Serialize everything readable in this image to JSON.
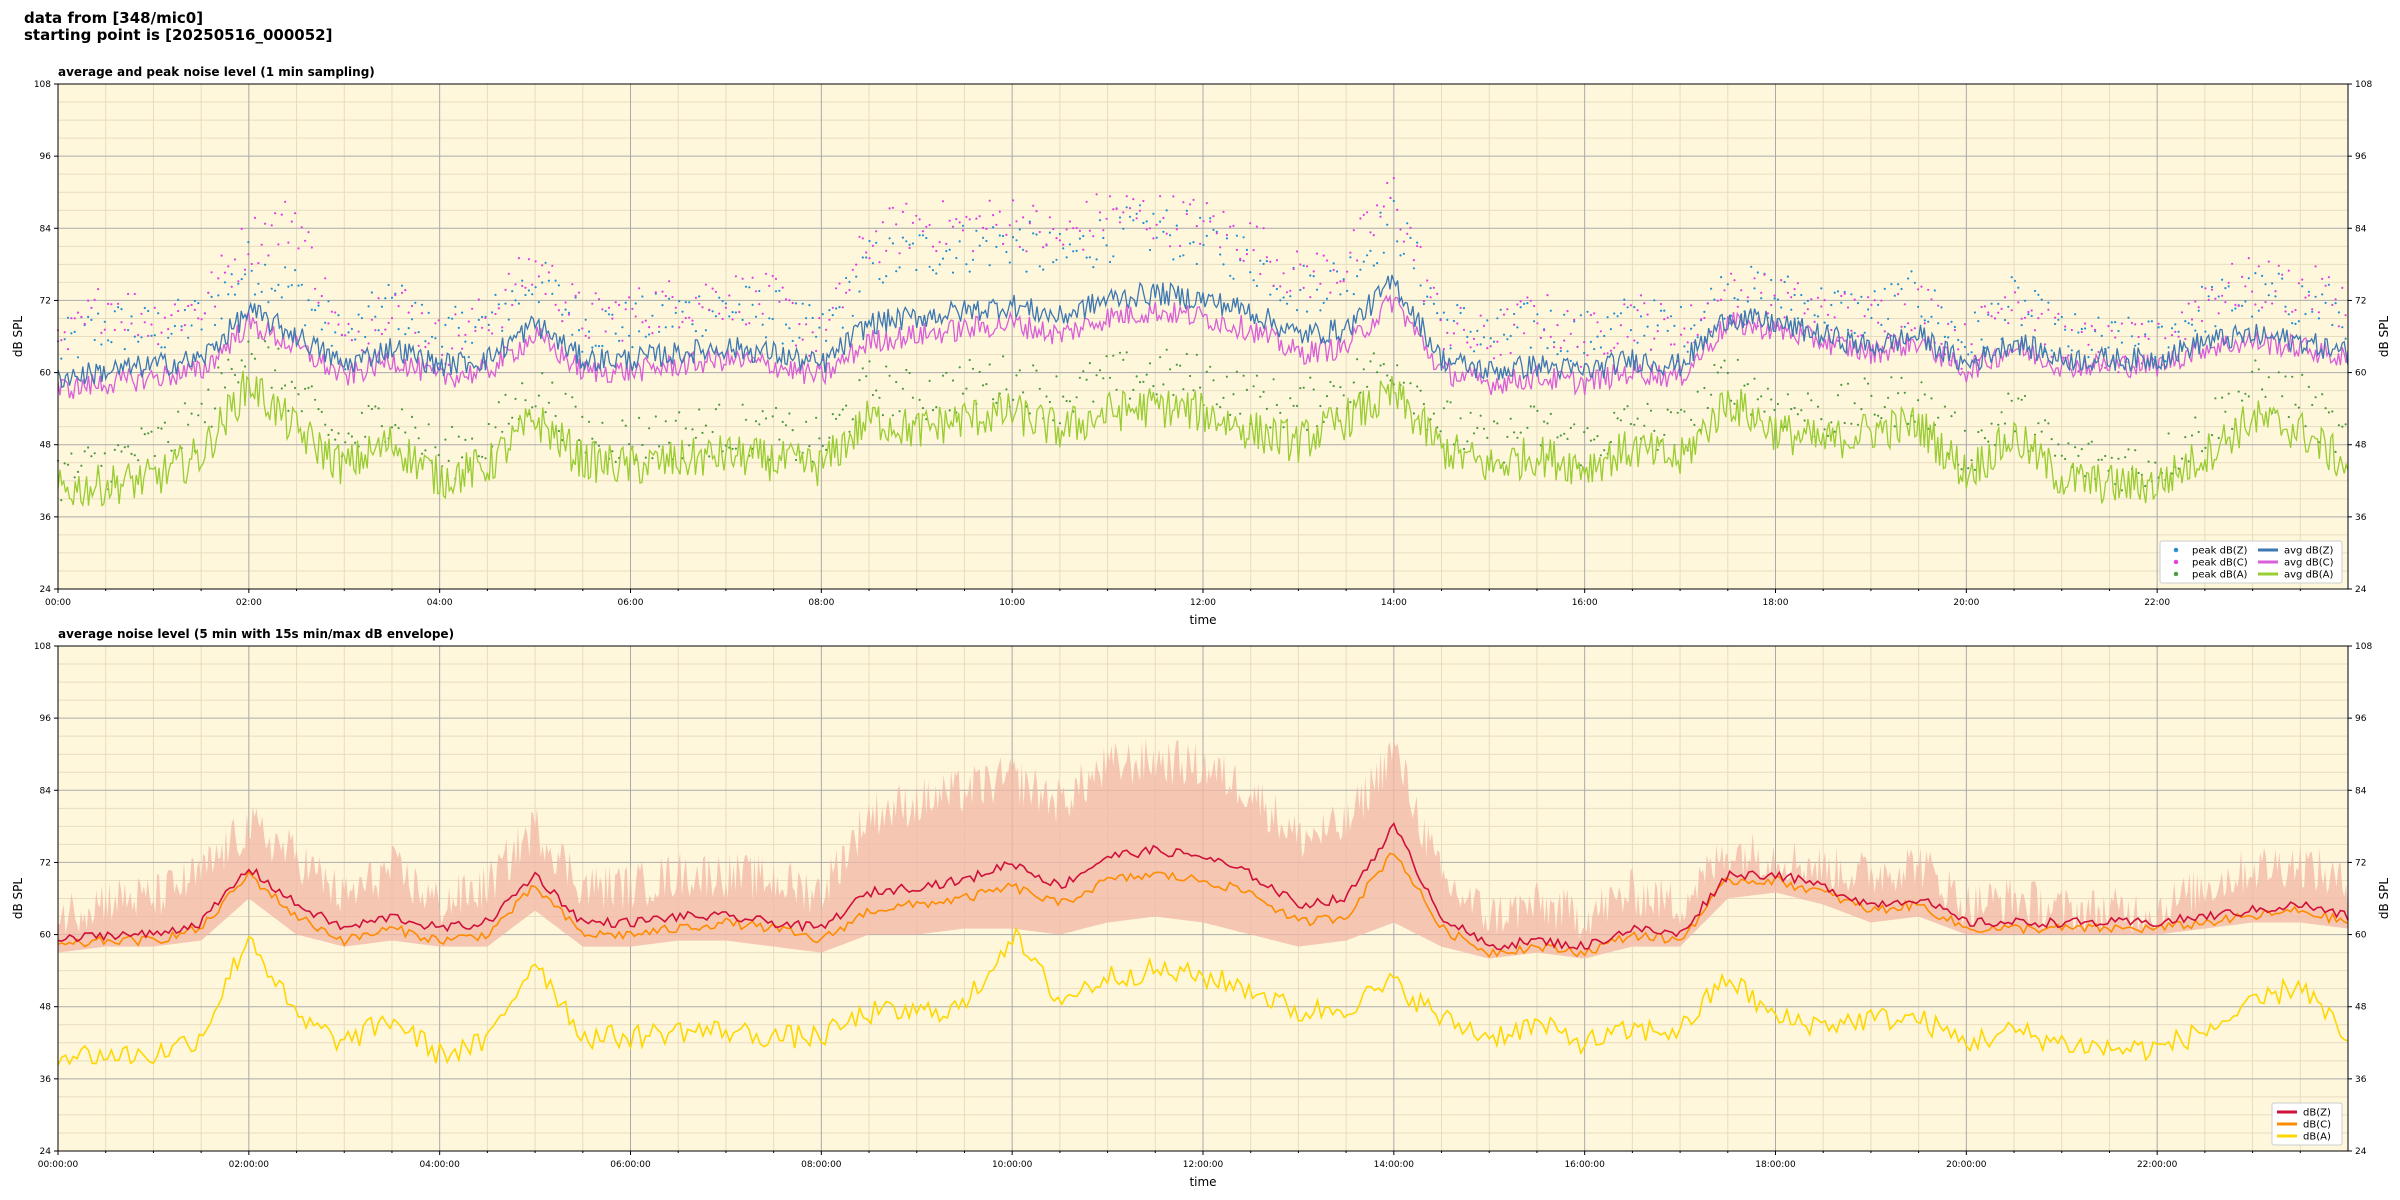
{
  "header": {
    "line1": "data from [348/mic0]",
    "line2": "starting point is [20250516_000052]"
  },
  "colors": {
    "plot_bg": "#fff7dc",
    "grid_major": "#aaaaaa",
    "grid_minor": "#e7dcc0",
    "peak_z": "#1f8fd4",
    "peak_c": "#e23ce2",
    "peak_a": "#4a9a3e",
    "avg_z": "#3e78b2",
    "avg_c": "#d95fd8",
    "avg_a": "#9acd32",
    "env_fill": "#f2b7a5",
    "line_z": "#d0103a",
    "line_c": "#ff8c00",
    "line_a": "#ffd700"
  },
  "chart_data": [
    {
      "type": "line",
      "title": "average and peak noise level (1 min sampling)",
      "xlabel": "time",
      "ylabel": "dB SPL",
      "ylim": [
        24,
        108
      ],
      "yticks": [
        "24",
        "36",
        "48",
        "60",
        "72",
        "84",
        "96",
        "108"
      ],
      "xticks": [
        "00:00",
        "02:00",
        "04:00",
        "06:00",
        "08:00",
        "10:00",
        "12:00",
        "14:00",
        "16:00",
        "18:00",
        "20:00",
        "22:00"
      ],
      "xlim_hours": [
        0,
        24
      ],
      "grid": true,
      "legend_position": "bottom-right",
      "legend": [
        "peak dB(Z)",
        "peak dB(C)",
        "peak dB(A)",
        "avg dB(Z)",
        "avg dB(C)",
        "avg dB(A)"
      ],
      "x_hours": [
        0,
        0.5,
        1,
        1.5,
        2,
        2.5,
        3,
        3.5,
        4,
        4.5,
        5,
        5.5,
        6,
        6.5,
        7,
        7.5,
        8,
        8.5,
        9,
        9.5,
        10,
        10.5,
        11,
        11.5,
        12,
        12.5,
        13,
        13.5,
        14,
        14.5,
        15,
        15.5,
        16,
        16.5,
        17,
        17.5,
        18,
        18.5,
        19,
        19.5,
        20,
        20.5,
        21,
        21.5,
        22,
        22.5,
        23,
        23.5,
        24
      ],
      "series": [
        {
          "name": "avg dB(Z)",
          "values": [
            59,
            60,
            61,
            62,
            70,
            66,
            61,
            64,
            61,
            62,
            68,
            62,
            62,
            63,
            64,
            63,
            61,
            68,
            69,
            70,
            71,
            69,
            72,
            73,
            72,
            70,
            66,
            67,
            75,
            62,
            60,
            61,
            60,
            62,
            61,
            69,
            68,
            66,
            64,
            66,
            61,
            65,
            62,
            62,
            62,
            65,
            66,
            65,
            63
          ]
        },
        {
          "name": "avg dB(C)",
          "values": [
            57,
            58,
            59,
            60,
            68,
            64,
            59,
            62,
            59,
            60,
            66,
            60,
            60,
            61,
            62,
            61,
            59,
            65,
            66,
            67,
            68,
            66,
            69,
            70,
            69,
            67,
            63,
            64,
            72,
            60,
            58,
            59,
            58,
            60,
            59,
            68,
            67,
            65,
            63,
            65,
            60,
            64,
            61,
            61,
            61,
            64,
            65,
            64,
            62
          ]
        },
        {
          "name": "avg dB(A)",
          "values": [
            40,
            41,
            42,
            46,
            58,
            50,
            44,
            48,
            42,
            44,
            52,
            45,
            44,
            45,
            46,
            45,
            44,
            52,
            50,
            52,
            53,
            50,
            53,
            54,
            53,
            50,
            48,
            52,
            56,
            47,
            44,
            46,
            44,
            47,
            45,
            55,
            50,
            48,
            50,
            51,
            43,
            49,
            42,
            41,
            41,
            46,
            52,
            50,
            44
          ]
        },
        {
          "name": "peak dB(Z)",
          "values": [
            62,
            66,
            65,
            67,
            76,
            72,
            63,
            70,
            64,
            66,
            74,
            66,
            66,
            68,
            69,
            68,
            64,
            76,
            78,
            79,
            80,
            77,
            81,
            82,
            80,
            77,
            72,
            74,
            84,
            67,
            64,
            66,
            64,
            67,
            65,
            72,
            71,
            69,
            68,
            71,
            63,
            70,
            64,
            63,
            63,
            69,
            71,
            70,
            68
          ]
        },
        {
          "name": "peak dB(C)",
          "values": [
            61,
            70,
            67,
            69,
            80,
            84,
            62,
            71,
            63,
            67,
            76,
            67,
            68,
            70,
            71,
            70,
            63,
            80,
            83,
            82,
            84,
            80,
            85,
            84,
            83,
            80,
            74,
            76,
            88,
            66,
            63,
            68,
            63,
            68,
            64,
            71,
            70,
            68,
            67,
            70,
            62,
            72,
            63,
            62,
            62,
            71,
            73,
            72,
            70
          ]
        },
        {
          "name": "peak dB(A)",
          "values": [
            41,
            43,
            46,
            50,
            64,
            54,
            46,
            52,
            44,
            47,
            56,
            48,
            47,
            48,
            49,
            48,
            46,
            56,
            54,
            56,
            57,
            54,
            57,
            58,
            57,
            54,
            52,
            56,
            60,
            50,
            46,
            49,
            46,
            50,
            48,
            58,
            53,
            51,
            53,
            54,
            45,
            52,
            44,
            43,
            43,
            49,
            56,
            54,
            46
          ]
        }
      ]
    },
    {
      "type": "line",
      "title": "average noise level (5 min with 15s min/max dB envelope)",
      "xlabel": "time",
      "ylabel": "dB SPL",
      "ylim": [
        24,
        108
      ],
      "yticks": [
        "24",
        "36",
        "48",
        "60",
        "72",
        "84",
        "96",
        "108"
      ],
      "xticks": [
        "00:00:00",
        "02:00:00",
        "04:00:00",
        "06:00:00",
        "08:00:00",
        "10:00:00",
        "12:00:00",
        "14:00:00",
        "16:00:00",
        "18:00:00",
        "20:00:00",
        "22:00:00"
      ],
      "xlim_hours": [
        0,
        24
      ],
      "grid": true,
      "legend_position": "bottom-right",
      "legend": [
        "dB(Z)",
        "dB(C)",
        "dB(A)"
      ],
      "x_hours": [
        0,
        0.5,
        1,
        1.5,
        2,
        2.5,
        3,
        3.5,
        4,
        4.5,
        5,
        5.5,
        6,
        6.5,
        7,
        7.5,
        8,
        8.5,
        9,
        9.5,
        10,
        10.5,
        11,
        11.5,
        12,
        12.5,
        13,
        13.5,
        14,
        14.5,
        15,
        15.5,
        16,
        16.5,
        17,
        17.5,
        18,
        18.5,
        19,
        19.5,
        20,
        20.5,
        21,
        21.5,
        22,
        22.5,
        23,
        23.5,
        24
      ],
      "series": [
        {
          "name": "dB(Z)",
          "values": [
            59,
            60,
            60,
            62,
            71,
            65,
            61,
            63,
            61,
            62,
            70,
            62,
            62,
            63,
            63,
            62,
            61,
            67,
            68,
            69,
            72,
            68,
            73,
            74,
            73,
            70,
            65,
            66,
            78,
            63,
            58,
            59,
            58,
            61,
            60,
            70,
            70,
            68,
            65,
            66,
            62,
            62,
            62,
            62,
            62,
            63,
            64,
            65,
            63
          ]
        },
        {
          "name": "dB(C)",
          "values": [
            58,
            59,
            59,
            61,
            70,
            63,
            59,
            61,
            59,
            60,
            68,
            60,
            60,
            61,
            62,
            61,
            59,
            64,
            65,
            66,
            68,
            65,
            69,
            70,
            69,
            67,
            62,
            63,
            74,
            61,
            57,
            58,
            57,
            60,
            59,
            69,
            69,
            67,
            64,
            65,
            61,
            61,
            61,
            61,
            61,
            62,
            63,
            64,
            62
          ]
        },
        {
          "name": "dB(A)",
          "values": [
            40,
            40,
            40,
            43,
            60,
            46,
            42,
            46,
            40,
            42,
            56,
            43,
            43,
            44,
            44,
            43,
            43,
            47,
            47,
            48,
            60,
            49,
            53,
            54,
            53,
            51,
            47,
            48,
            52,
            46,
            43,
            45,
            42,
            44,
            44,
            53,
            46,
            45,
            46,
            46,
            42,
            44,
            42,
            41,
            41,
            44,
            48,
            52,
            42
          ]
        },
        {
          "name": "dB max envelope",
          "values": [
            63,
            66,
            66,
            70,
            78,
            73,
            66,
            71,
            65,
            68,
            78,
            68,
            68,
            70,
            70,
            69,
            67,
            80,
            82,
            84,
            86,
            82,
            88,
            89,
            88,
            84,
            76,
            78,
            91,
            69,
            63,
            65,
            63,
            67,
            65,
            74,
            73,
            71,
            70,
            72,
            65,
            66,
            64,
            64,
            64,
            68,
            71,
            72,
            68
          ]
        },
        {
          "name": "dB min envelope",
          "values": [
            57,
            58,
            58,
            59,
            66,
            60,
            58,
            59,
            58,
            58,
            64,
            58,
            58,
            59,
            59,
            58,
            57,
            60,
            60,
            61,
            61,
            60,
            62,
            63,
            62,
            60,
            58,
            59,
            62,
            58,
            56,
            57,
            56,
            58,
            58,
            66,
            67,
            65,
            62,
            63,
            60,
            60,
            60,
            60,
            60,
            61,
            62,
            62,
            61
          ]
        }
      ]
    }
  ]
}
